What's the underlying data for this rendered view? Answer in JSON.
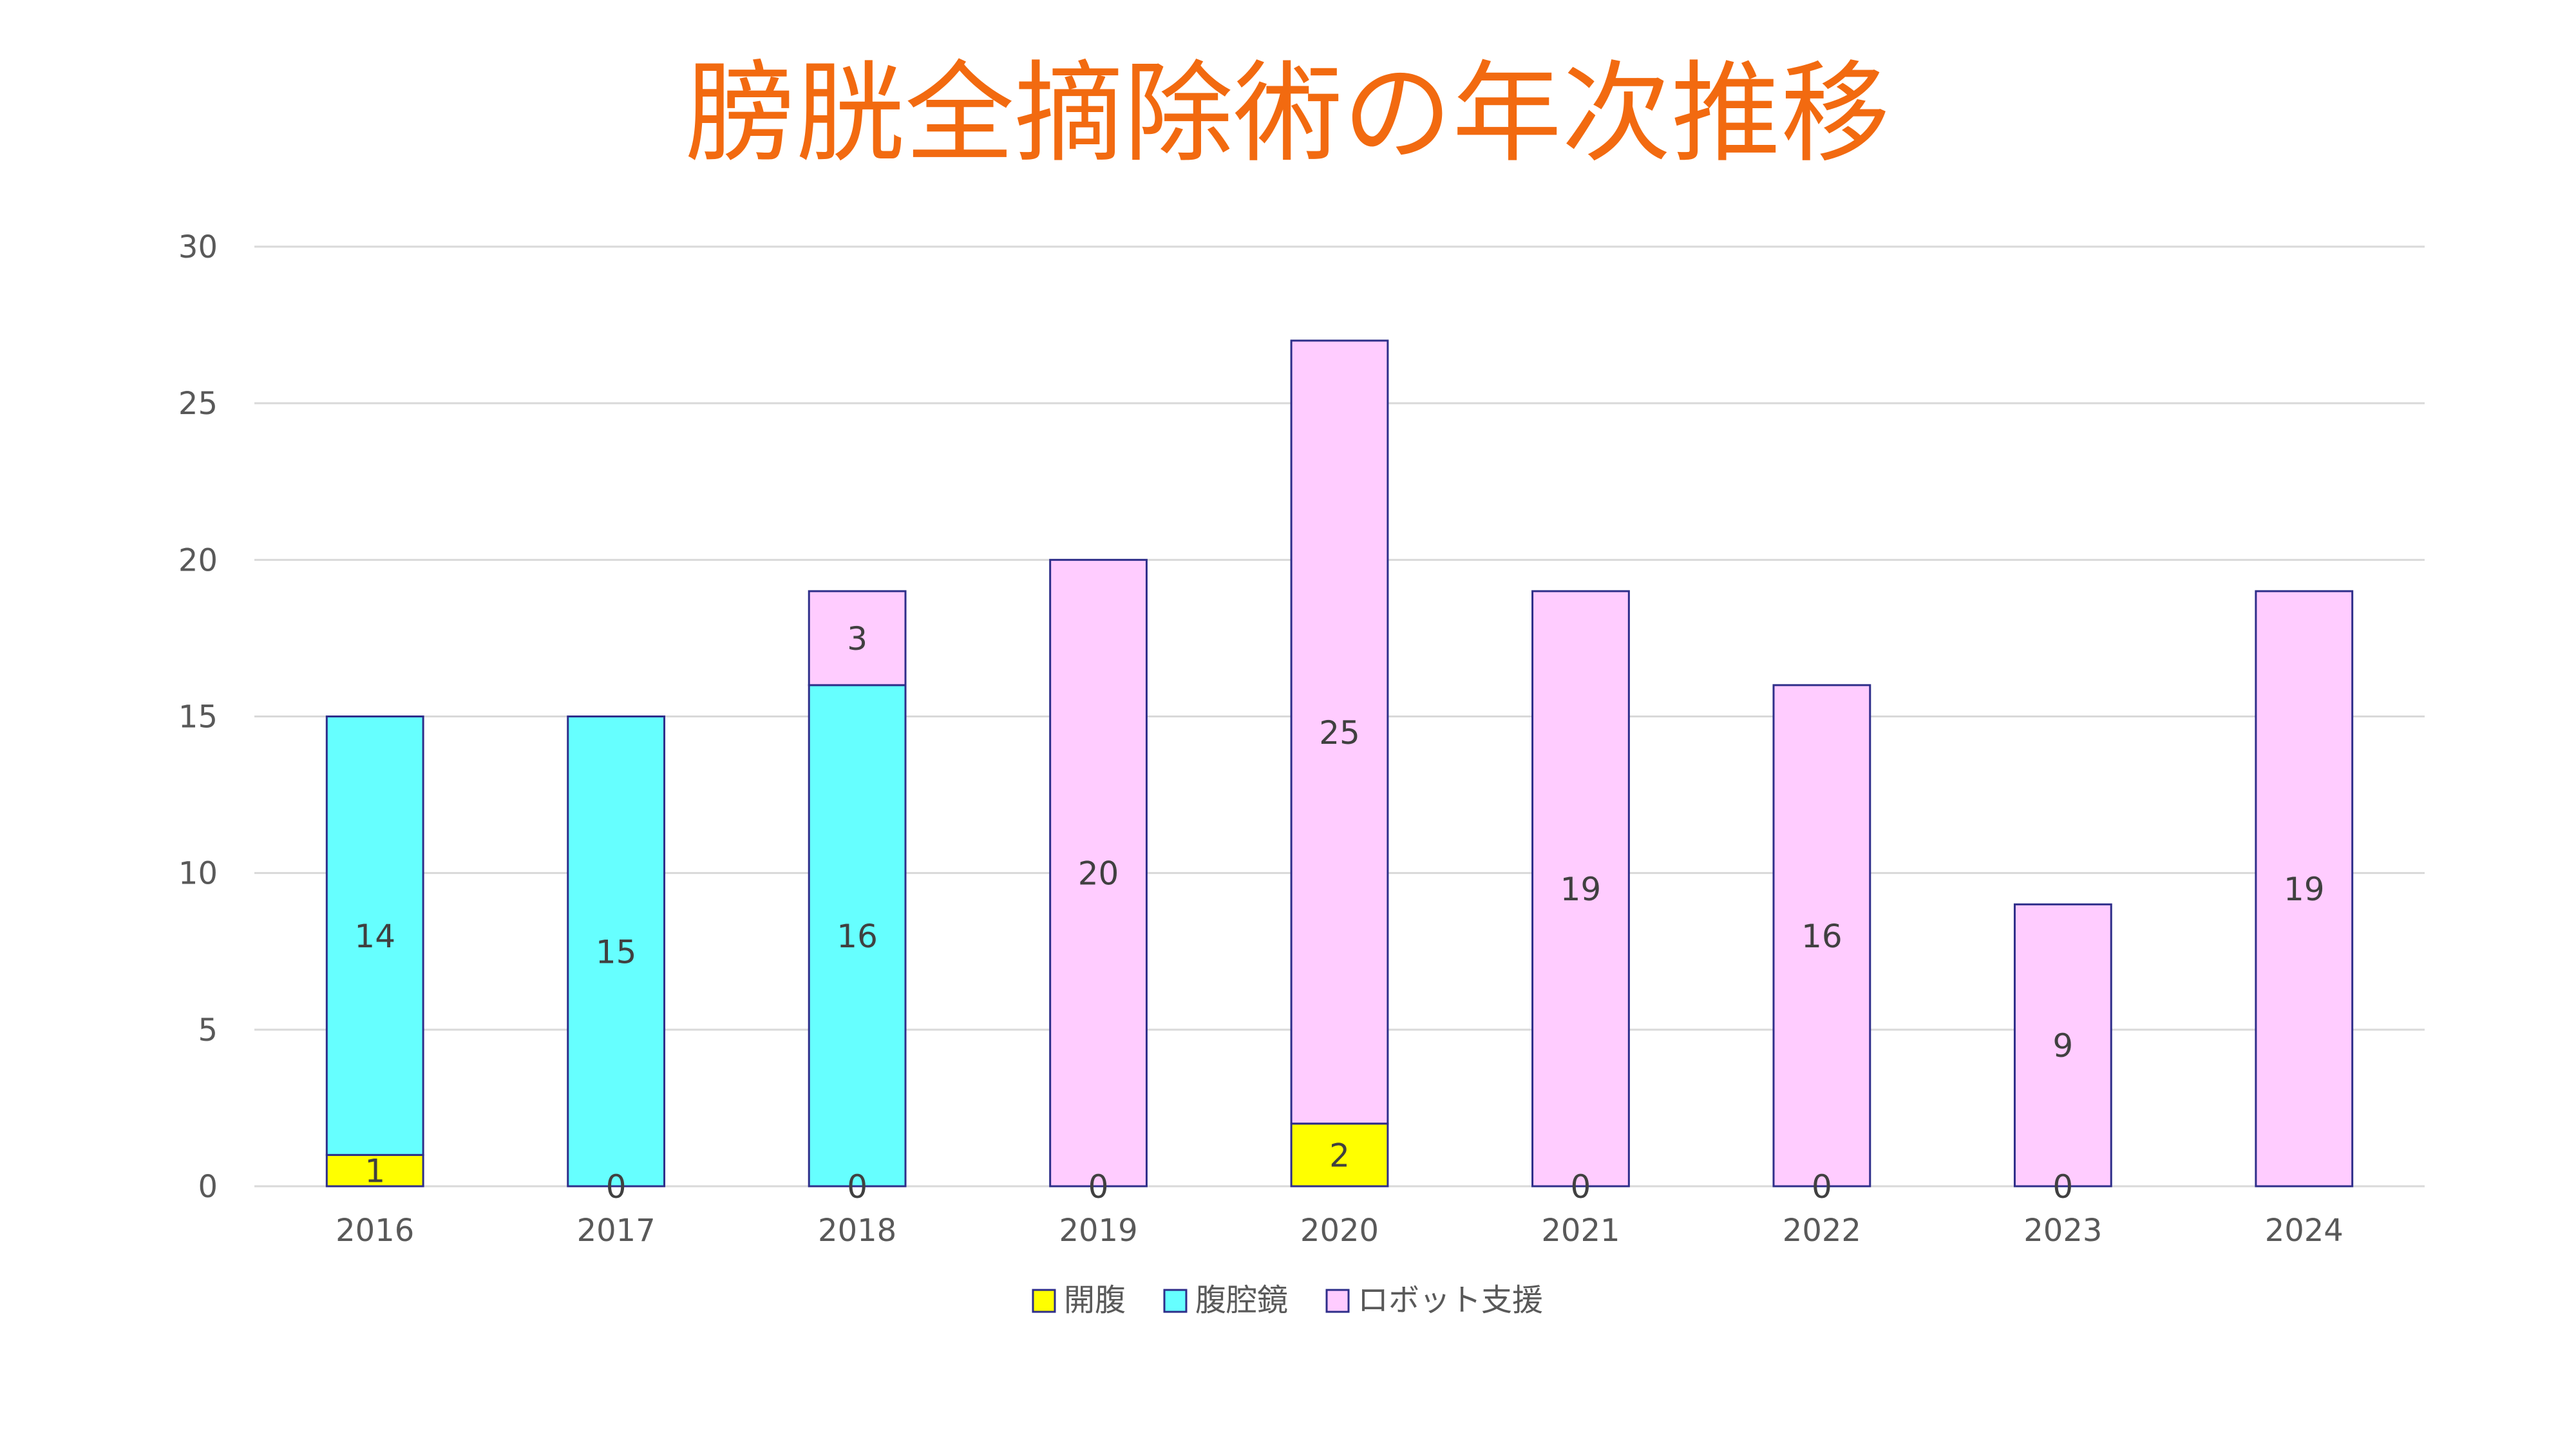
{
  "chart_data": {
    "type": "bar",
    "stacked": true,
    "title": "膀胱全摘除術の年次推移",
    "xlabel": "",
    "ylabel": "",
    "categories": [
      "2016",
      "2017",
      "2018",
      "2019",
      "2020",
      "2021",
      "2022",
      "2023",
      "2024"
    ],
    "series": [
      {
        "name": "開腹",
        "color": "#FFFF00",
        "values": [
          1,
          0,
          0,
          0,
          2,
          0,
          0,
          0,
          null
        ]
      },
      {
        "name": "腹腔鏡",
        "color": "#66FFFF",
        "values": [
          14,
          15,
          16,
          null,
          null,
          null,
          null,
          null,
          null
        ]
      },
      {
        "name": "ロボット支援",
        "color": "#FFCCFF",
        "values": [
          null,
          null,
          3,
          20,
          25,
          19,
          16,
          9,
          19
        ]
      }
    ],
    "ylim": [
      0,
      30
    ],
    "yticks": [
      "0",
      "5",
      "10",
      "15",
      "20",
      "25",
      "30"
    ],
    "grid": true,
    "legend_position": "bottom",
    "bar_outline_color": "#2E2E8A"
  }
}
